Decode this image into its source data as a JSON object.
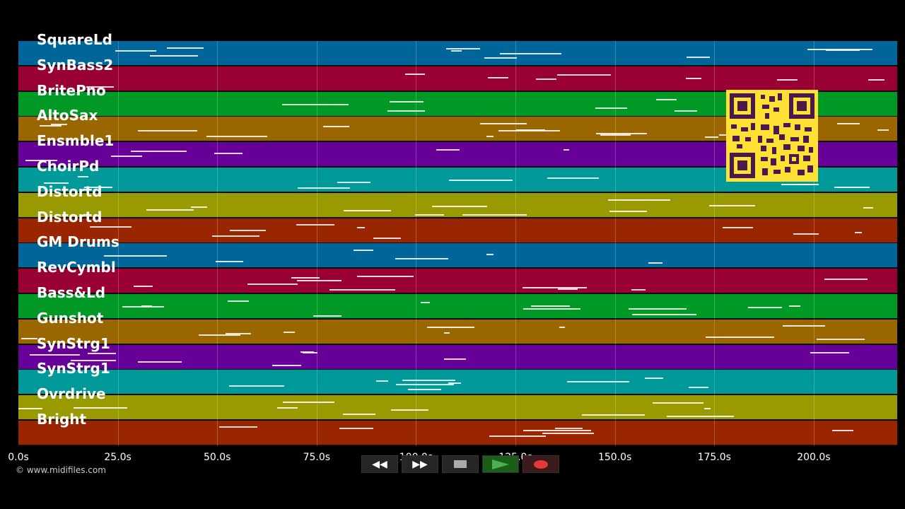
{
  "tracks": [
    {
      "name": "SquareLd",
      "color": "#006699"
    },
    {
      "name": "SynBass2",
      "color": "#990033"
    },
    {
      "name": "BritePno",
      "color": "#009926"
    },
    {
      "name": "AltoSax",
      "color": "#996600"
    },
    {
      "name": "Ensmble1",
      "color": "#660099"
    },
    {
      "name": "ChoirPd",
      "color": "#009999"
    },
    {
      "name": "Distortd",
      "color": "#999900"
    },
    {
      "name": "Distortd",
      "color": "#992600"
    },
    {
      "name": "GM Drums",
      "color": "#006699"
    },
    {
      "name": "RevCymbl",
      "color": "#990033"
    },
    {
      "name": "Bass&Ld",
      "color": "#009926"
    },
    {
      "name": "Gunshot",
      "color": "#996600"
    },
    {
      "name": "SynStrg1",
      "color": "#660099"
    },
    {
      "name": "SynStrg1",
      "color": "#009999"
    },
    {
      "name": "Ovrdrive",
      "color": "#999900"
    },
    {
      "name": "Bright",
      "color": "#992600"
    }
  ],
  "time_axis": {
    "ticks": [
      "0.0s",
      "25.0s",
      "50.0s",
      "75.0s",
      "100.0s",
      "125.0s",
      "150.0s",
      "175.0s",
      "200.0s"
    ],
    "max_seconds": 221
  },
  "transport": {
    "rewind_icon": "rewind-icon",
    "forward_icon": "fast-forward-icon",
    "stop_icon": "stop-icon",
    "play_icon": "play-icon",
    "record_icon": "record-icon"
  },
  "copyright": "© www.midifiles.com"
}
